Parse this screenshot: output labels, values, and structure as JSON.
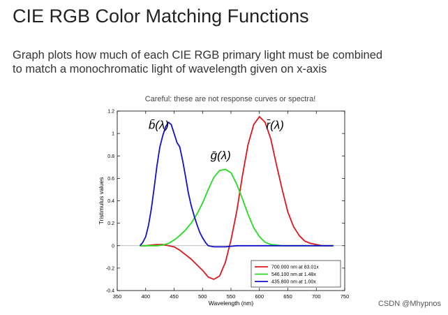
{
  "slide": {
    "title": "CIE RGB Color Matching Functions",
    "subtitle_line1": "Graph plots how much of each CIE RGB primary light must be combined",
    "subtitle_line2": "to match a monochromatic light of wavelength given on x-axis",
    "caution": "Careful: these are not response curves or spectra!",
    "watermark": "CSDN @Mhypnos"
  },
  "chart_data": {
    "type": "line",
    "title": "",
    "xlabel": "Wavelength (nm)",
    "ylabel": "Tristimulus values",
    "xlim": [
      350,
      750
    ],
    "ylim": [
      -0.4,
      1.2
    ],
    "xticks": [
      350,
      400,
      450,
      500,
      550,
      600,
      650,
      700,
      750
    ],
    "yticks": [
      -0.4,
      -0.2,
      0,
      0.2,
      0.4,
      0.6,
      0.8,
      1,
      1.2
    ],
    "grid": false,
    "legend_position": "bottom-right",
    "series": [
      {
        "name": "700.000 nm at 83.01x",
        "label": "r̄(λ)",
        "label_x": 612,
        "label_y": 1.04,
        "color": "#e0141b",
        "x": [
          390,
          400,
          410,
          420,
          430,
          440,
          450,
          460,
          470,
          480,
          490,
          500,
          510,
          520,
          530,
          540,
          550,
          560,
          570,
          580,
          590,
          600,
          610,
          620,
          630,
          640,
          650,
          660,
          670,
          680,
          690,
          700,
          710,
          720,
          730
        ],
        "y": [
          0.0,
          0.0,
          0.005,
          0.01,
          0.01,
          0.0,
          -0.01,
          -0.04,
          -0.08,
          -0.12,
          -0.17,
          -0.22,
          -0.28,
          -0.3,
          -0.27,
          -0.15,
          0.05,
          0.3,
          0.62,
          0.9,
          1.08,
          1.15,
          1.1,
          0.95,
          0.72,
          0.5,
          0.3,
          0.17,
          0.09,
          0.04,
          0.02,
          0.01,
          0.0,
          0.0,
          0.0
        ]
      },
      {
        "name": "546.100 nm at  1.48x",
        "label": "ḡ(λ)",
        "label_x": 514,
        "label_y": 0.77,
        "color": "#22dd22",
        "x": [
          390,
          400,
          410,
          420,
          430,
          440,
          450,
          460,
          470,
          480,
          490,
          500,
          510,
          520,
          530,
          540,
          550,
          560,
          570,
          580,
          590,
          600,
          610,
          620,
          630,
          640,
          650,
          660,
          670,
          680,
          690,
          700,
          710,
          720,
          730
        ],
        "y": [
          0.0,
          0.0,
          0.0,
          0.0,
          0.005,
          0.02,
          0.05,
          0.09,
          0.14,
          0.2,
          0.28,
          0.38,
          0.5,
          0.61,
          0.67,
          0.68,
          0.65,
          0.55,
          0.42,
          0.28,
          0.16,
          0.08,
          0.03,
          0.01,
          0.005,
          0.0,
          0.0,
          0.0,
          0.0,
          0.0,
          0.0,
          0.0,
          0.0,
          0.0,
          0.0
        ]
      },
      {
        "name": "435.800 nm at  1.00x",
        "label": "b̄(λ)",
        "label_x": 405,
        "label_y": 1.04,
        "color": "#1010cc",
        "x": [
          390,
          395,
          400,
          405,
          410,
          415,
          420,
          425,
          430,
          435,
          440,
          445,
          450,
          455,
          460,
          465,
          470,
          475,
          480,
          485,
          490,
          495,
          500,
          505,
          510,
          520,
          530,
          540,
          550,
          560,
          580,
          600,
          650,
          700,
          730
        ],
        "y": [
          0.0,
          0.03,
          0.08,
          0.18,
          0.33,
          0.52,
          0.72,
          0.88,
          0.98,
          1.06,
          1.1,
          1.08,
          1.0,
          0.92,
          0.88,
          0.76,
          0.62,
          0.47,
          0.36,
          0.27,
          0.19,
          0.12,
          0.07,
          0.03,
          0.0,
          -0.01,
          -0.01,
          -0.01,
          -0.005,
          0.0,
          0.0,
          0.0,
          0.0,
          0.0,
          0.0
        ]
      }
    ]
  }
}
